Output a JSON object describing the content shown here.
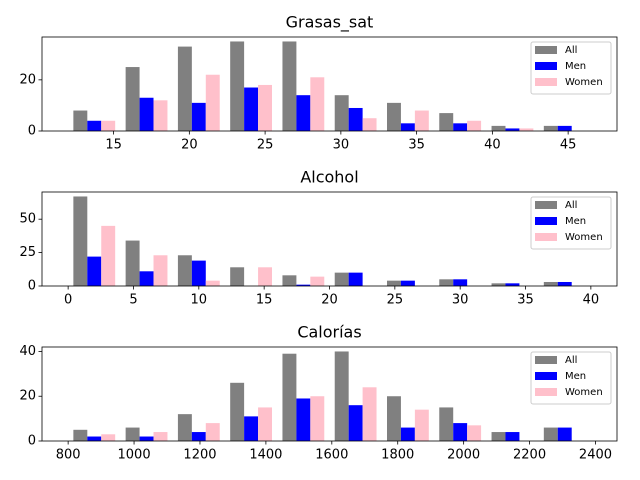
{
  "chart_data": [
    {
      "type": "histogram",
      "title": "Grasas_sat",
      "legend": "upper right",
      "bins": [
        12,
        15.45,
        18.9,
        22.35,
        25.8,
        29.25,
        32.7,
        36.15,
        39.6,
        43.05,
        46.5
      ],
      "series": [
        {
          "name": "All",
          "color": "#808080",
          "values": [
            8,
            25,
            33,
            35,
            35,
            14,
            11,
            7,
            2,
            2
          ]
        },
        {
          "name": "Men",
          "color": "#0000ff",
          "values": [
            4,
            13,
            11,
            17,
            14,
            9,
            3,
            3,
            1,
            2
          ]
        },
        {
          "name": "Women",
          "color": "#ffc0cb",
          "values": [
            4,
            12,
            22,
            18,
            21,
            5,
            8,
            4,
            1,
            0
          ]
        }
      ],
      "xlim": [
        10.275,
        48.225
      ],
      "xticks": [
        15,
        20,
        25,
        30,
        35,
        40,
        45
      ],
      "ylim": [
        0,
        36.75
      ],
      "yticks": [
        0,
        20
      ]
    },
    {
      "type": "histogram",
      "title": "Alcohol",
      "legend": "upper right",
      "bins": [
        0,
        4,
        8,
        12,
        16,
        20,
        24,
        28,
        32,
        36,
        40
      ],
      "series": [
        {
          "name": "All",
          "color": "#808080",
          "values": [
            67,
            34,
            23,
            14,
            8,
            10,
            4,
            5,
            2,
            3
          ]
        },
        {
          "name": "Men",
          "color": "#0000ff",
          "values": [
            22,
            11,
            19,
            0,
            1,
            10,
            4,
            5,
            2,
            3
          ]
        },
        {
          "name": "Women",
          "color": "#ffc0cb",
          "values": [
            45,
            23,
            4,
            14,
            7,
            0,
            0,
            0,
            0,
            0
          ]
        }
      ],
      "xlim": [
        -2,
        42
      ],
      "xticks": [
        0,
        5,
        10,
        15,
        20,
        25,
        30,
        35,
        40
      ],
      "ylim": [
        0,
        70.35
      ],
      "yticks": [
        0,
        25,
        50
      ]
    },
    {
      "type": "histogram",
      "title": "Calorías",
      "legend": "upper right",
      "bins": [
        800,
        958.6,
        1117.2,
        1275.8,
        1434.4,
        1593,
        1751.6,
        1910.2,
        2068.8,
        2227.4,
        2386
      ],
      "series": [
        {
          "name": "All",
          "color": "#808080",
          "values": [
            5,
            6,
            12,
            26,
            39,
            40,
            20,
            15,
            4,
            6
          ]
        },
        {
          "name": "Men",
          "color": "#0000ff",
          "values": [
            2,
            2,
            4,
            11,
            19,
            16,
            6,
            8,
            4,
            6
          ]
        },
        {
          "name": "Women",
          "color": "#ffc0cb",
          "values": [
            3,
            4,
            8,
            15,
            20,
            24,
            14,
            7,
            0,
            0
          ]
        }
      ],
      "xlim": [
        720.7,
        2465.3
      ],
      "xticks": [
        800,
        1000,
        1200,
        1400,
        1600,
        1800,
        2000,
        2200,
        2400
      ],
      "ylim": [
        0,
        42
      ],
      "yticks": [
        0,
        20,
        40
      ]
    }
  ]
}
